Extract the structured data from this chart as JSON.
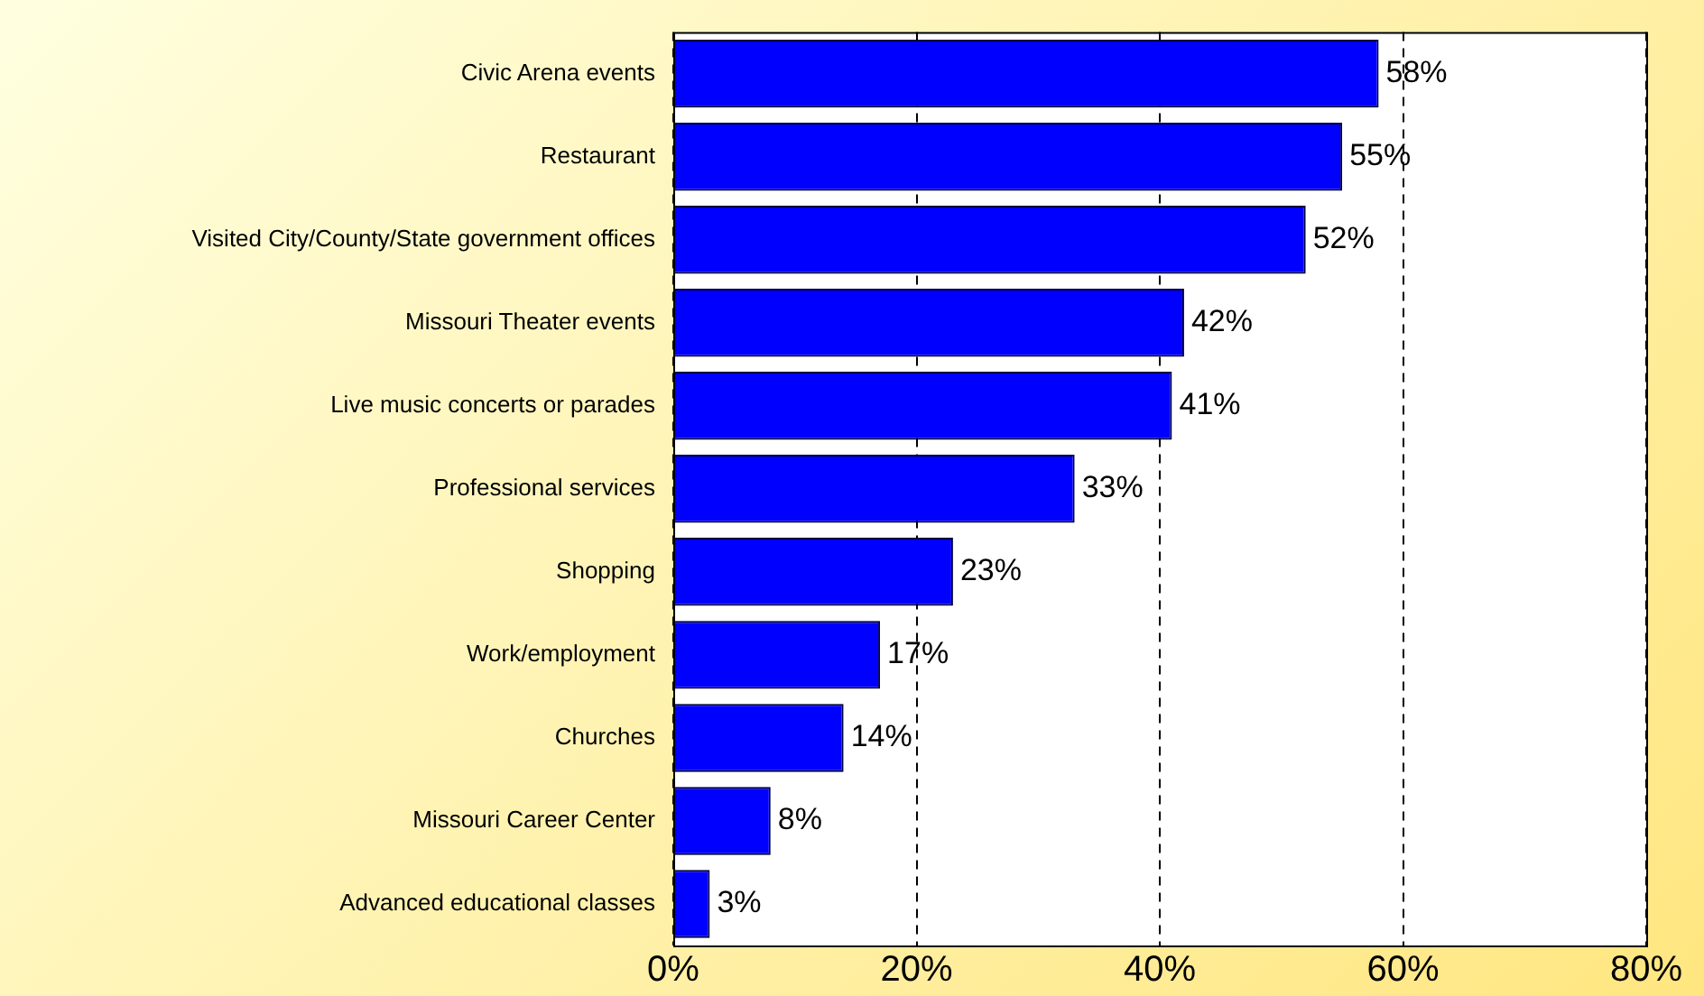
{
  "chart_data": {
    "type": "bar",
    "orientation": "horizontal",
    "categories": [
      "Civic Arena events",
      "Restaurant",
      "Visited City/County/State government offices",
      "Missouri Theater events",
      "Live music concerts or parades",
      "Professional services",
      "Shopping",
      "Work/employment",
      "Churches",
      "Missouri Career Center",
      "Advanced educational classes"
    ],
    "values": [
      58,
      55,
      52,
      42,
      41,
      33,
      23,
      17,
      14,
      8,
      3
    ],
    "value_labels": [
      "58%",
      "55%",
      "52%",
      "42%",
      "41%",
      "33%",
      "23%",
      "17%",
      "14%",
      "8%",
      "3%"
    ],
    "color": "#0000ff",
    "xlim": [
      0,
      80
    ],
    "xticks": [
      {
        "value": 0,
        "label": "0%"
      },
      {
        "value": 20,
        "label": "20%"
      },
      {
        "value": 40,
        "label": "40%"
      },
      {
        "value": 60,
        "label": "60%"
      },
      {
        "value": 80,
        "label": "80%"
      }
    ],
    "grid": "x",
    "legend": false
  }
}
